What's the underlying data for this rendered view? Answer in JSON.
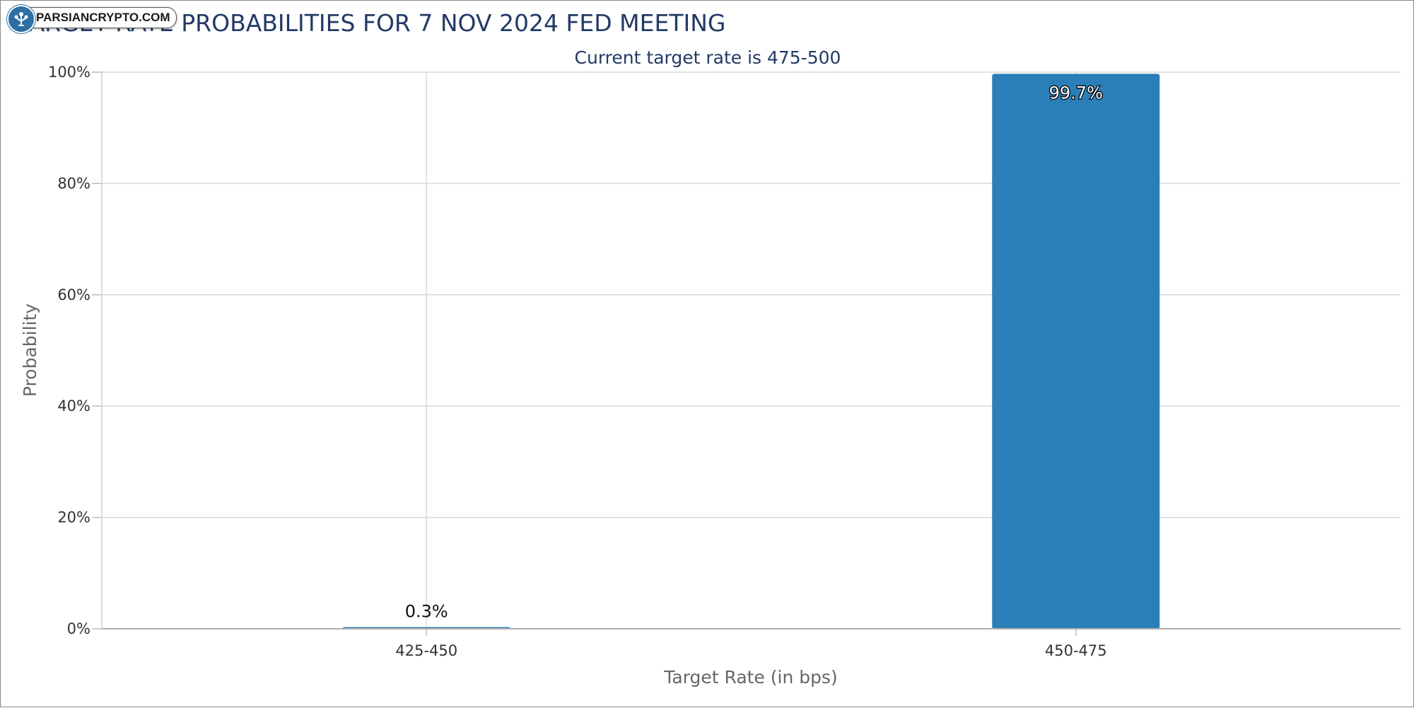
{
  "watermark": {
    "text": "PARSIANCRYPTO.COM"
  },
  "colors": {
    "bar": "#2a7fb8",
    "title": "#233a66",
    "grid": "#d9d9d9"
  },
  "chart_data": {
    "type": "bar",
    "title": "TARGET RATE PROBABILITIES FOR 7 NOV 2024 FED MEETING",
    "subtitle": "Current target rate is 475-500",
    "xlabel": "Target Rate (in bps)",
    "ylabel": "Probability",
    "categories": [
      "425-450",
      "450-475"
    ],
    "values": [
      0.3,
      99.7
    ],
    "data_labels": [
      "0.3%",
      "99.7%"
    ],
    "ylim": [
      0,
      100
    ],
    "yticks": [
      0,
      20,
      40,
      60,
      80,
      100
    ],
    "ytick_labels": [
      "0%",
      "20%",
      "40%",
      "60%",
      "80%",
      "100%"
    ],
    "grid": true,
    "legend": false
  }
}
